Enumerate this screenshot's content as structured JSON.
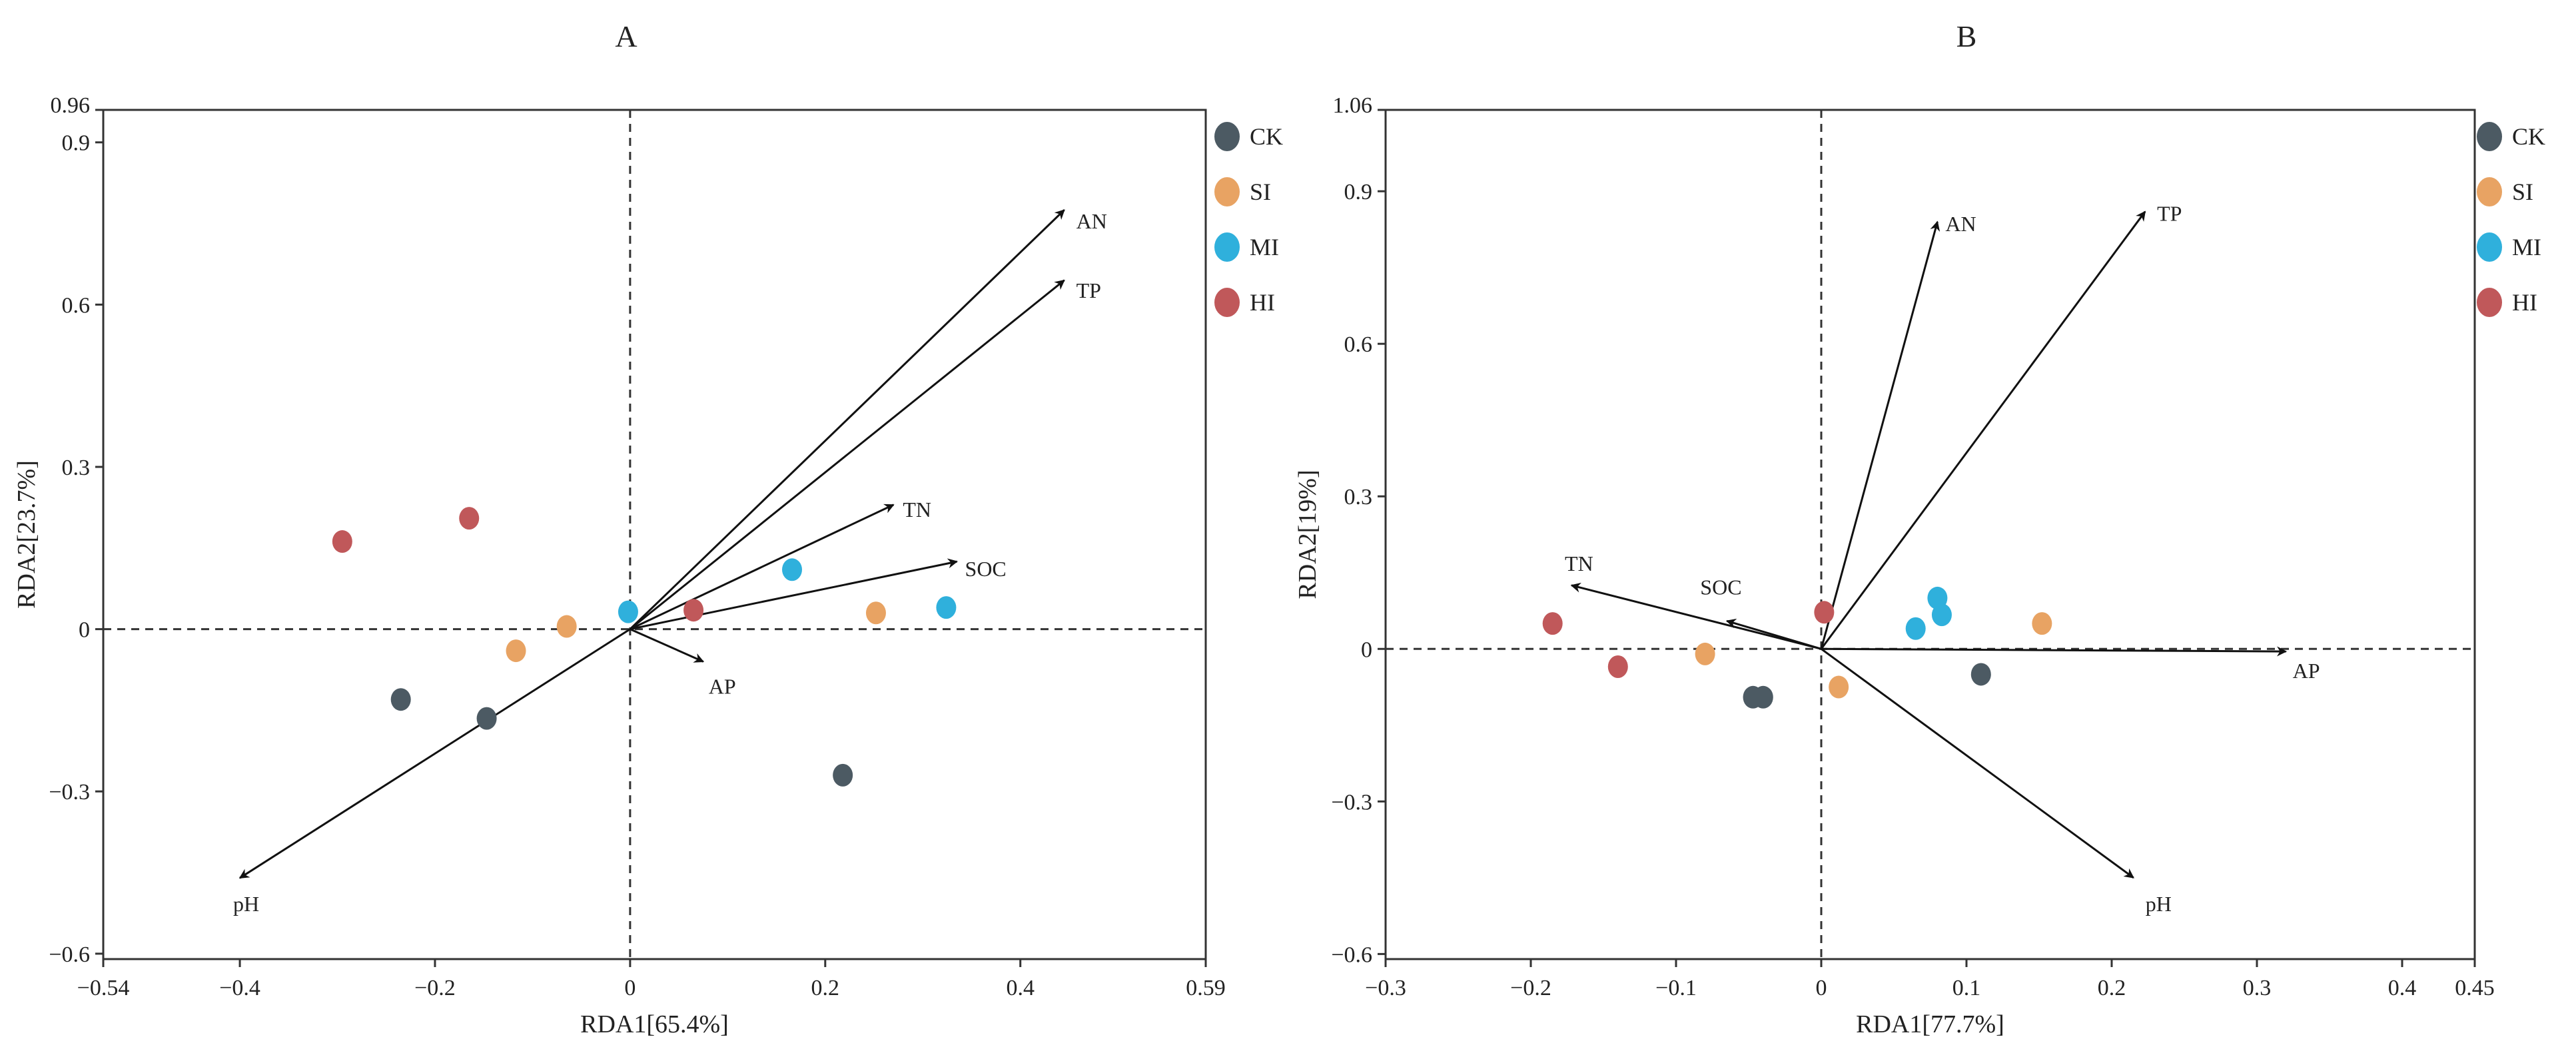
{
  "chart_data": [
    {
      "type": "scatter",
      "panel_label": "A",
      "xlabel": "RDA1[65.4%]",
      "ylabel": "RDA2[23.7%]",
      "xlim": [
        -0.54,
        0.59
      ],
      "ylim": [
        -0.61,
        0.96
      ],
      "xticks": [
        {
          "v": -0.54,
          "label": "−0.54"
        },
        {
          "v": -0.4,
          "label": "−0.4"
        },
        {
          "v": -0.2,
          "label": "−0.2"
        },
        {
          "v": 0,
          "label": "0"
        },
        {
          "v": 0.2,
          "label": "0.2"
        },
        {
          "v": 0.4,
          "label": "0.4"
        },
        {
          "v": 0.59,
          "label": "0.59"
        }
      ],
      "yticks": [
        {
          "v": 0.96,
          "label": "0.96"
        },
        {
          "v": 0.9,
          "label": "0.9"
        },
        {
          "v": 0.6,
          "label": "0.6"
        },
        {
          "v": 0.3,
          "label": "0.3"
        },
        {
          "v": 0,
          "label": "0"
        },
        {
          "v": -0.3,
          "label": "−0.3"
        },
        {
          "v": -0.6,
          "label": "−0.6"
        }
      ],
      "legend": [
        "CK",
        "SI",
        "MI",
        "HI"
      ],
      "series": [
        {
          "name": "CK",
          "color": "#4c5a63",
          "points": [
            [
              -0.235,
              -0.13
            ],
            [
              -0.147,
              -0.165
            ],
            [
              0.218,
              -0.27
            ]
          ]
        },
        {
          "name": "SI",
          "color": "#e8a363",
          "points": [
            [
              -0.117,
              -0.04
            ],
            [
              -0.065,
              0.005
            ],
            [
              0.252,
              0.03
            ]
          ]
        },
        {
          "name": "MI",
          "color": "#2fb0dc",
          "points": [
            [
              -0.002,
              0.032
            ],
            [
              0.166,
              0.11
            ],
            [
              0.324,
              0.04
            ]
          ]
        },
        {
          "name": "HI",
          "color": "#c0585a",
          "points": [
            [
              -0.295,
              0.162
            ],
            [
              -0.165,
              0.205
            ],
            [
              0.065,
              0.035
            ]
          ]
        }
      ],
      "vectors": [
        {
          "name": "AN",
          "x": 0.445,
          "y": 0.775
        },
        {
          "name": "TP",
          "x": 0.445,
          "y": 0.645
        },
        {
          "name": "TN",
          "x": 0.27,
          "y": 0.23
        },
        {
          "name": "SOC",
          "x": 0.335,
          "y": 0.125
        },
        {
          "name": "AP",
          "x": 0.075,
          "y": -0.06
        },
        {
          "name": "pH",
          "x": -0.4,
          "y": -0.46
        }
      ]
    },
    {
      "type": "scatter",
      "panel_label": "B",
      "xlabel": "RDA1[77.7%]",
      "ylabel": "RDA2[19%]",
      "xlim": [
        -0.3,
        0.45
      ],
      "ylim": [
        -0.61,
        1.06
      ],
      "xticks": [
        {
          "v": -0.3,
          "label": "−0.3"
        },
        {
          "v": -0.2,
          "label": "−0.2"
        },
        {
          "v": -0.1,
          "label": "−0.1"
        },
        {
          "v": 0,
          "label": "0"
        },
        {
          "v": 0.1,
          "label": "0.1"
        },
        {
          "v": 0.2,
          "label": "0.2"
        },
        {
          "v": 0.3,
          "label": "0.3"
        },
        {
          "v": 0.4,
          "label": "0.4"
        },
        {
          "v": 0.45,
          "label": "0.45"
        }
      ],
      "yticks": [
        {
          "v": 1.06,
          "label": "1.06"
        },
        {
          "v": 0.9,
          "label": "0.9"
        },
        {
          "v": 0.6,
          "label": "0.6"
        },
        {
          "v": 0.3,
          "label": "0.3"
        },
        {
          "v": 0,
          "label": "0"
        },
        {
          "v": -0.3,
          "label": "−0.3"
        },
        {
          "v": -0.6,
          "label": "−0.6"
        }
      ],
      "legend": [
        "CK",
        "SI",
        "MI",
        "HI"
      ],
      "series": [
        {
          "name": "CK",
          "color": "#4c5a63",
          "points": [
            [
              -0.047,
              -0.095
            ],
            [
              -0.04,
              -0.095
            ],
            [
              0.11,
              -0.05
            ]
          ]
        },
        {
          "name": "SI",
          "color": "#e8a363",
          "points": [
            [
              -0.08,
              -0.01
            ],
            [
              0.012,
              -0.075
            ],
            [
              0.152,
              0.05
            ]
          ]
        },
        {
          "name": "MI",
          "color": "#2fb0dc",
          "points": [
            [
              0.065,
              0.04
            ],
            [
              0.08,
              0.1
            ],
            [
              0.083,
              0.067
            ]
          ]
        },
        {
          "name": "HI",
          "color": "#c0585a",
          "points": [
            [
              -0.185,
              0.05
            ],
            [
              -0.14,
              -0.035
            ],
            [
              0.002,
              0.072
            ]
          ]
        }
      ],
      "vectors": [
        {
          "name": "AN",
          "x": 0.08,
          "y": 0.84
        },
        {
          "name": "TP",
          "x": 0.223,
          "y": 0.86
        },
        {
          "name": "TN",
          "x": -0.172,
          "y": 0.125
        },
        {
          "name": "SOC",
          "x": -0.065,
          "y": 0.055
        },
        {
          "name": "AP",
          "x": 0.32,
          "y": -0.005
        },
        {
          "name": "pH",
          "x": 0.215,
          "y": -0.45
        }
      ]
    }
  ]
}
